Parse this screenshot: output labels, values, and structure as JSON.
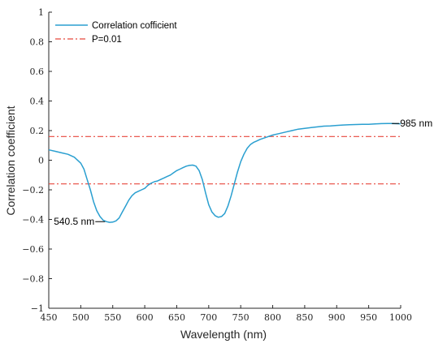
{
  "chart_data": {
    "type": "line",
    "xlabel": "Wavelength (nm)",
    "ylabel": "Correlation coefficient",
    "xlim": [
      450,
      1000
    ],
    "ylim": [
      -1,
      1
    ],
    "xticks": [
      450,
      500,
      550,
      600,
      650,
      700,
      750,
      800,
      850,
      900,
      950,
      1000
    ],
    "yticks": [
      -1,
      -0.8,
      -0.6,
      -0.4,
      -0.2,
      0,
      0.2,
      0.4,
      0.6,
      0.8,
      1
    ],
    "ytick_labels": [
      "−1",
      "−0.8",
      "−0.6",
      "−0.4",
      "−0.2",
      "0",
      "0.2",
      "0.4",
      "0.6",
      "0.8",
      "1"
    ],
    "grid": false,
    "legend_position": "top-left",
    "series": [
      {
        "name": "Correlation cofficient",
        "color": "#2a9fd0",
        "x": [
          450,
          460,
          470,
          480,
          490,
          500,
          505,
          510,
          515,
          520,
          525,
          530,
          535,
          540,
          545,
          550,
          555,
          560,
          565,
          570,
          575,
          580,
          585,
          590,
          595,
          600,
          605,
          610,
          615,
          620,
          625,
          630,
          635,
          640,
          645,
          650,
          655,
          660,
          665,
          670,
          675,
          680,
          685,
          690,
          695,
          700,
          705,
          710,
          715,
          720,
          725,
          730,
          735,
          740,
          745,
          750,
          755,
          760,
          765,
          770,
          775,
          780,
          790,
          800,
          810,
          820,
          830,
          840,
          850,
          860,
          870,
          880,
          890,
          900,
          910,
          920,
          930,
          940,
          950,
          960,
          970,
          980,
          985,
          990,
          1000
        ],
        "y": [
          0.07,
          0.06,
          0.05,
          0.04,
          0.02,
          -0.02,
          -0.06,
          -0.13,
          -0.2,
          -0.28,
          -0.34,
          -0.38,
          -0.405,
          -0.415,
          -0.42,
          -0.418,
          -0.41,
          -0.39,
          -0.35,
          -0.31,
          -0.27,
          -0.24,
          -0.22,
          -0.21,
          -0.2,
          -0.19,
          -0.17,
          -0.155,
          -0.145,
          -0.14,
          -0.13,
          -0.12,
          -0.11,
          -0.1,
          -0.085,
          -0.07,
          -0.06,
          -0.05,
          -0.04,
          -0.035,
          -0.033,
          -0.04,
          -0.07,
          -0.13,
          -0.22,
          -0.3,
          -0.35,
          -0.375,
          -0.385,
          -0.38,
          -0.36,
          -0.31,
          -0.24,
          -0.16,
          -0.08,
          -0.01,
          0.04,
          0.08,
          0.105,
          0.12,
          0.13,
          0.14,
          0.155,
          0.17,
          0.18,
          0.19,
          0.2,
          0.21,
          0.215,
          0.22,
          0.225,
          0.23,
          0.232,
          0.235,
          0.238,
          0.24,
          0.241,
          0.242,
          0.243,
          0.245,
          0.247,
          0.248,
          0.248,
          0.247,
          0.246
        ]
      },
      {
        "name": "P=0.01",
        "color": "#e8473c",
        "style": "dash-dot",
        "y_levels": [
          0.16,
          -0.16
        ]
      }
    ],
    "annotations": [
      {
        "text": "540.5 nm",
        "x": 540.5,
        "y": -0.415,
        "side": "left"
      },
      {
        "text": "985 nm",
        "x": 985,
        "y": 0.248,
        "side": "right"
      }
    ]
  }
}
